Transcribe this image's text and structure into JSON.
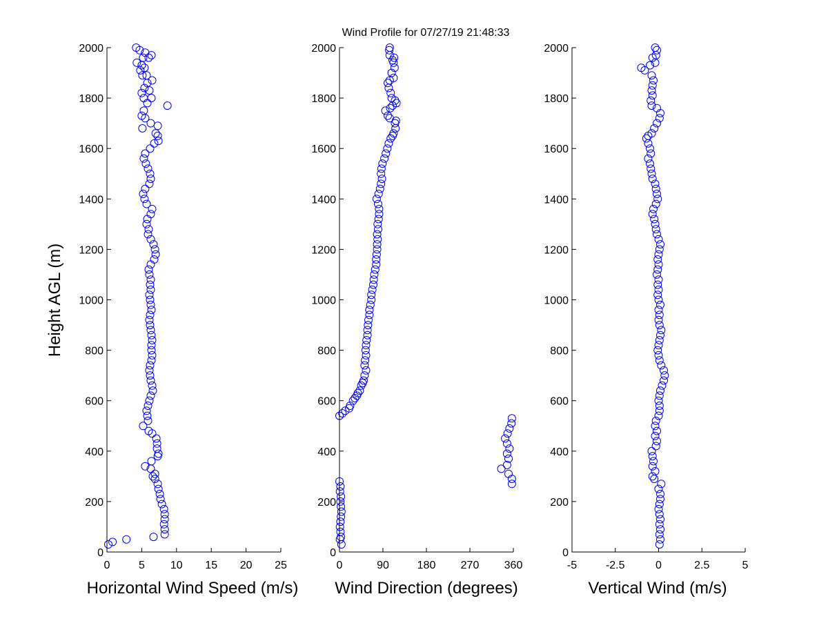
{
  "title": "Wind Profile for  07/27/19 21:48:33",
  "colors": {
    "marker": "#0000ff",
    "axes": "#000000",
    "background": "#ffffff"
  },
  "chart_data": [
    {
      "type": "scatter",
      "xlabel": "Horizontal Wind Speed (m/s)",
      "ylabel": "Height AGL (m)",
      "xlim": [
        0,
        25
      ],
      "ylim": [
        0,
        2000
      ],
      "xticks": [
        "0",
        "5",
        "10",
        "15",
        "20",
        "25"
      ],
      "yticks": [
        "0",
        "200",
        "400",
        "600",
        "800",
        "1000",
        "1200",
        "1400",
        "1600",
        "1800",
        "2000"
      ],
      "grid": false,
      "points": [
        [
          0.2,
          30
        ],
        [
          0.8,
          40
        ],
        [
          2.8,
          50
        ],
        [
          6.7,
          60
        ],
        [
          8.3,
          70
        ],
        [
          8.3,
          90
        ],
        [
          8.2,
          110
        ],
        [
          8.3,
          130
        ],
        [
          8.3,
          150
        ],
        [
          8.2,
          170
        ],
        [
          7.9,
          190
        ],
        [
          7.7,
          210
        ],
        [
          7.6,
          230
        ],
        [
          7.4,
          250
        ],
        [
          7.3,
          270
        ],
        [
          6.9,
          290
        ],
        [
          6.6,
          300
        ],
        [
          6.9,
          310
        ],
        [
          6.3,
          330
        ],
        [
          5.5,
          340
        ],
        [
          6.4,
          360
        ],
        [
          7.3,
          380
        ],
        [
          7.4,
          390
        ],
        [
          7.2,
          410
        ],
        [
          7.2,
          430
        ],
        [
          7.1,
          450
        ],
        [
          6.5,
          470
        ],
        [
          6.0,
          480
        ],
        [
          5.2,
          500
        ],
        [
          5.9,
          520
        ],
        [
          5.8,
          540
        ],
        [
          5.7,
          560
        ],
        [
          5.9,
          580
        ],
        [
          6.1,
          600
        ],
        [
          6.3,
          620
        ],
        [
          6.6,
          640
        ],
        [
          6.5,
          660
        ],
        [
          6.3,
          680
        ],
        [
          6.2,
          700
        ],
        [
          6.1,
          720
        ],
        [
          6.2,
          740
        ],
        [
          6.4,
          760
        ],
        [
          6.5,
          780
        ],
        [
          6.4,
          800
        ],
        [
          6.4,
          820
        ],
        [
          6.5,
          840
        ],
        [
          6.4,
          860
        ],
        [
          6.3,
          880
        ],
        [
          6.2,
          900
        ],
        [
          6.1,
          920
        ],
        [
          6.2,
          940
        ],
        [
          6.4,
          960
        ],
        [
          6.3,
          980
        ],
        [
          6.2,
          1000
        ],
        [
          6.1,
          1020
        ],
        [
          6.3,
          1040
        ],
        [
          6.2,
          1060
        ],
        [
          6.3,
          1080
        ],
        [
          6.1,
          1100
        ],
        [
          6.0,
          1120
        ],
        [
          6.3,
          1140
        ],
        [
          6.8,
          1160
        ],
        [
          7.0,
          1180
        ],
        [
          6.9,
          1200
        ],
        [
          6.7,
          1220
        ],
        [
          6.3,
          1240
        ],
        [
          5.9,
          1260
        ],
        [
          6.0,
          1280
        ],
        [
          5.7,
          1300
        ],
        [
          5.8,
          1320
        ],
        [
          6.3,
          1340
        ],
        [
          6.5,
          1360
        ],
        [
          5.7,
          1380
        ],
        [
          5.4,
          1400
        ],
        [
          5.2,
          1420
        ],
        [
          5.5,
          1440
        ],
        [
          6.1,
          1460
        ],
        [
          6.3,
          1480
        ],
        [
          6.2,
          1500
        ],
        [
          5.9,
          1520
        ],
        [
          5.6,
          1540
        ],
        [
          5.3,
          1560
        ],
        [
          5.5,
          1580
        ],
        [
          6.2,
          1600
        ],
        [
          6.8,
          1620
        ],
        [
          7.4,
          1630
        ],
        [
          7.3,
          1650
        ],
        [
          7.0,
          1660
        ],
        [
          7.3,
          1690
        ],
        [
          5.1,
          1680
        ],
        [
          6.3,
          1700
        ],
        [
          5.5,
          1720
        ],
        [
          5.0,
          1730
        ],
        [
          5.3,
          1750
        ],
        [
          8.7,
          1770
        ],
        [
          5.8,
          1780
        ],
        [
          5.3,
          1800
        ],
        [
          6.4,
          1800
        ],
        [
          5.0,
          1820
        ],
        [
          6.1,
          1830
        ],
        [
          5.4,
          1840
        ],
        [
          5.8,
          1860
        ],
        [
          6.5,
          1870
        ],
        [
          5.1,
          1890
        ],
        [
          5.7,
          1890
        ],
        [
          4.8,
          1910
        ],
        [
          5.4,
          1920
        ],
        [
          5.0,
          1930
        ],
        [
          4.3,
          1940
        ],
        [
          6.0,
          1960
        ],
        [
          5.2,
          1960
        ],
        [
          6.4,
          1970
        ],
        [
          5.5,
          1980
        ],
        [
          4.7,
          1990
        ],
        [
          4.2,
          2000
        ]
      ]
    },
    {
      "type": "scatter",
      "xlabel": "Wind Direction (degrees)",
      "ylabel": "",
      "xlim": [
        0,
        360
      ],
      "ylim": [
        0,
        2000
      ],
      "xticks": [
        "0",
        "90",
        "180",
        "270",
        "360"
      ],
      "yticks": [
        "0",
        "200",
        "400",
        "600",
        "800",
        "1000",
        "1200",
        "1400",
        "1600",
        "1800",
        "2000"
      ],
      "grid": false,
      "points": [
        [
          4,
          30
        ],
        [
          1,
          50
        ],
        [
          3,
          60
        ],
        [
          2,
          80
        ],
        [
          1,
          100
        ],
        [
          2,
          120
        ],
        [
          3,
          140
        ],
        [
          4,
          160
        ],
        [
          3,
          180
        ],
        [
          2,
          200
        ],
        [
          3,
          220
        ],
        [
          1,
          240
        ],
        [
          2,
          260
        ],
        [
          0,
          280
        ],
        [
          357,
          270
        ],
        [
          357,
          290
        ],
        [
          350,
          310
        ],
        [
          335,
          330
        ],
        [
          347,
          345
        ],
        [
          350,
          370
        ],
        [
          347,
          390
        ],
        [
          352,
          410
        ],
        [
          347,
          430
        ],
        [
          343,
          450
        ],
        [
          348,
          470
        ],
        [
          352,
          490
        ],
        [
          356,
          510
        ],
        [
          357,
          530
        ],
        [
          0,
          540
        ],
        [
          6,
          550
        ],
        [
          12,
          560
        ],
        [
          20,
          570
        ],
        [
          22,
          580
        ],
        [
          28,
          600
        ],
        [
          32,
          610
        ],
        [
          36,
          620
        ],
        [
          38,
          630
        ],
        [
          42,
          640
        ],
        [
          45,
          660
        ],
        [
          48,
          670
        ],
        [
          50,
          680
        ],
        [
          52,
          700
        ],
        [
          55,
          720
        ],
        [
          52,
          740
        ],
        [
          53,
          760
        ],
        [
          55,
          780
        ],
        [
          54,
          800
        ],
        [
          55,
          820
        ],
        [
          56,
          840
        ],
        [
          58,
          860
        ],
        [
          58,
          880
        ],
        [
          59,
          900
        ],
        [
          60,
          920
        ],
        [
          62,
          940
        ],
        [
          62,
          960
        ],
        [
          64,
          980
        ],
        [
          66,
          1000
        ],
        [
          66,
          1020
        ],
        [
          68,
          1040
        ],
        [
          70,
          1060
        ],
        [
          71,
          1080
        ],
        [
          72,
          1100
        ],
        [
          74,
          1120
        ],
        [
          76,
          1140
        ],
        [
          76,
          1160
        ],
        [
          77,
          1180
        ],
        [
          78,
          1200
        ],
        [
          78,
          1220
        ],
        [
          79,
          1240
        ],
        [
          78,
          1260
        ],
        [
          80,
          1280
        ],
        [
          79,
          1300
        ],
        [
          81,
          1320
        ],
        [
          82,
          1340
        ],
        [
          82,
          1360
        ],
        [
          80,
          1380
        ],
        [
          77,
          1400
        ],
        [
          81,
          1420
        ],
        [
          84,
          1440
        ],
        [
          86,
          1460
        ],
        [
          88,
          1480
        ],
        [
          86,
          1500
        ],
        [
          87,
          1520
        ],
        [
          89,
          1540
        ],
        [
          93,
          1560
        ],
        [
          96,
          1580
        ],
        [
          99,
          1600
        ],
        [
          102,
          1620
        ],
        [
          106,
          1640
        ],
        [
          110,
          1650
        ],
        [
          112,
          1660
        ],
        [
          116,
          1680
        ],
        [
          115,
          1700
        ],
        [
          117,
          1710
        ],
        [
          104,
          1720
        ],
        [
          100,
          1730
        ],
        [
          95,
          1750
        ],
        [
          105,
          1760
        ],
        [
          110,
          1770
        ],
        [
          118,
          1780
        ],
        [
          115,
          1790
        ],
        [
          108,
          1800
        ],
        [
          106,
          1820
        ],
        [
          102,
          1840
        ],
        [
          100,
          1860
        ],
        [
          104,
          1870
        ],
        [
          112,
          1880
        ],
        [
          108,
          1900
        ],
        [
          114,
          1920
        ],
        [
          112,
          1940
        ],
        [
          110,
          1950
        ],
        [
          113,
          1960
        ],
        [
          104,
          1970
        ],
        [
          103,
          1990
        ],
        [
          104,
          2000
        ]
      ]
    },
    {
      "type": "scatter",
      "xlabel": "Vertical Wind (m/s)",
      "ylabel": "",
      "xlim": [
        -5,
        5
      ],
      "ylim": [
        0,
        2000
      ],
      "xticks": [
        "-5",
        "-2.5",
        "0",
        "2.5",
        "5"
      ],
      "yticks": [
        "0",
        "200",
        "400",
        "600",
        "800",
        "1000",
        "1200",
        "1400",
        "1600",
        "1800",
        "2000"
      ],
      "grid": false,
      "points": [
        [
          0.05,
          30
        ],
        [
          0.1,
          50
        ],
        [
          0.05,
          70
        ],
        [
          0.1,
          90
        ],
        [
          0.05,
          110
        ],
        [
          0.1,
          130
        ],
        [
          0.05,
          150
        ],
        [
          0.0,
          170
        ],
        [
          0.05,
          190
        ],
        [
          0.1,
          210
        ],
        [
          0.1,
          230
        ],
        [
          0.0,
          250
        ],
        [
          0.15,
          270
        ],
        [
          -0.25,
          290
        ],
        [
          -0.35,
          300
        ],
        [
          -0.2,
          320
        ],
        [
          -0.35,
          340
        ],
        [
          -0.3,
          360
        ],
        [
          -0.35,
          380
        ],
        [
          -0.4,
          400
        ],
        [
          -0.15,
          420
        ],
        [
          -0.1,
          440
        ],
        [
          -0.2,
          460
        ],
        [
          -0.1,
          480
        ],
        [
          -0.2,
          500
        ],
        [
          -0.15,
          520
        ],
        [
          0.0,
          540
        ],
        [
          0.05,
          560
        ],
        [
          0.05,
          580
        ],
        [
          0.0,
          600
        ],
        [
          0.05,
          620
        ],
        [
          0.1,
          640
        ],
        [
          0.2,
          660
        ],
        [
          0.3,
          680
        ],
        [
          0.35,
          700
        ],
        [
          0.3,
          720
        ],
        [
          0.15,
          740
        ],
        [
          0.05,
          760
        ],
        [
          0.0,
          780
        ],
        [
          -0.05,
          800
        ],
        [
          0.0,
          820
        ],
        [
          0.05,
          840
        ],
        [
          0.1,
          860
        ],
        [
          0.15,
          880
        ],
        [
          0.05,
          900
        ],
        [
          0.0,
          920
        ],
        [
          0.05,
          940
        ],
        [
          0.0,
          960
        ],
        [
          0.1,
          980
        ],
        [
          0.0,
          1000
        ],
        [
          -0.05,
          1020
        ],
        [
          0.0,
          1040
        ],
        [
          -0.05,
          1060
        ],
        [
          0.0,
          1080
        ],
        [
          -0.1,
          1100
        ],
        [
          -0.05,
          1120
        ],
        [
          0.0,
          1140
        ],
        [
          -0.05,
          1160
        ],
        [
          0.0,
          1180
        ],
        [
          0.05,
          1200
        ],
        [
          0.1,
          1220
        ],
        [
          0.0,
          1240
        ],
        [
          -0.1,
          1260
        ],
        [
          -0.15,
          1280
        ],
        [
          -0.2,
          1300
        ],
        [
          -0.25,
          1320
        ],
        [
          -0.35,
          1340
        ],
        [
          -0.3,
          1360
        ],
        [
          -0.15,
          1380
        ],
        [
          -0.05,
          1400
        ],
        [
          -0.1,
          1420
        ],
        [
          -0.15,
          1440
        ],
        [
          -0.2,
          1460
        ],
        [
          -0.35,
          1480
        ],
        [
          -0.4,
          1500
        ],
        [
          -0.45,
          1520
        ],
        [
          -0.5,
          1540
        ],
        [
          -0.6,
          1560
        ],
        [
          -0.45,
          1580
        ],
        [
          -0.5,
          1600
        ],
        [
          -0.6,
          1620
        ],
        [
          -0.7,
          1640
        ],
        [
          -0.6,
          1650
        ],
        [
          -0.4,
          1660
        ],
        [
          -0.25,
          1680
        ],
        [
          -0.1,
          1700
        ],
        [
          0.05,
          1720
        ],
        [
          0.1,
          1740
        ],
        [
          -0.1,
          1760
        ],
        [
          -0.4,
          1770
        ],
        [
          -0.45,
          1790
        ],
        [
          -0.35,
          1810
        ],
        [
          -0.4,
          1830
        ],
        [
          -0.35,
          1850
        ],
        [
          -0.3,
          1870
        ],
        [
          -0.4,
          1890
        ],
        [
          -0.8,
          1910
        ],
        [
          -1.0,
          1920
        ],
        [
          -0.5,
          1930
        ],
        [
          -0.2,
          1940
        ],
        [
          -0.35,
          1960
        ],
        [
          -0.15,
          1970
        ],
        [
          -0.1,
          1990
        ],
        [
          -0.2,
          2000
        ]
      ]
    }
  ]
}
